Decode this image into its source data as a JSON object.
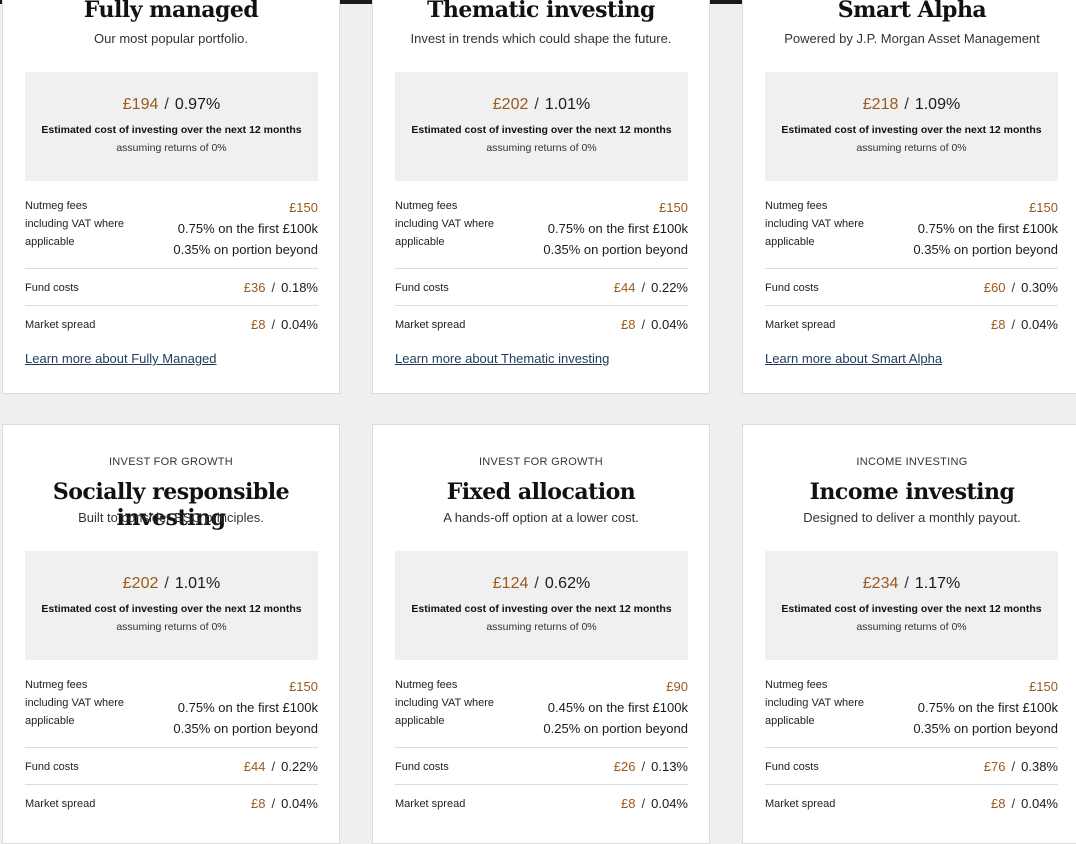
{
  "colors": {
    "accent": "#9a5a1e",
    "link": "#1f3a5a",
    "panel": "#f0f0f0"
  },
  "cards": [
    {
      "eyebrow": "",
      "title": "Fully managed",
      "subtitle": "Our most popular portfolio.",
      "cost_amount": "£194",
      "cost_percent": "0.97%",
      "cost_label": "Estimated cost of investing over the next 12 months",
      "cost_sub": "assuming returns of 0%",
      "fees_label_1": "Nutmeg fees",
      "fees_label_2": "including VAT where",
      "fees_label_3": "applicable",
      "fees_amount": "£150",
      "fees_tier1_rate": "0.75%",
      "fees_tier1_text": "on the first £100k",
      "fees_tier2_rate": "0.35%",
      "fees_tier2_text": "on portion beyond",
      "fund_label": "Fund costs",
      "fund_amount": "£36",
      "fund_percent": "0.18%",
      "spread_label": "Market spread",
      "spread_amount": "£8",
      "spread_percent": "0.04%",
      "learn_more": "Learn more about Fully Managed"
    },
    {
      "eyebrow": "",
      "title": "Thematic investing",
      "subtitle": "Invest in trends which could shape the future.",
      "cost_amount": "£202",
      "cost_percent": "1.01%",
      "cost_label": "Estimated cost of investing over the next 12 months",
      "cost_sub": "assuming returns of 0%",
      "fees_label_1": "Nutmeg fees",
      "fees_label_2": "including VAT where",
      "fees_label_3": "applicable",
      "fees_amount": "£150",
      "fees_tier1_rate": "0.75%",
      "fees_tier1_text": "on the first £100k",
      "fees_tier2_rate": "0.35%",
      "fees_tier2_text": "on portion beyond",
      "fund_label": "Fund costs",
      "fund_amount": "£44",
      "fund_percent": "0.22%",
      "spread_label": "Market spread",
      "spread_amount": "£8",
      "spread_percent": "0.04%",
      "learn_more": "Learn more about Thematic investing"
    },
    {
      "eyebrow": "",
      "title": "Smart Alpha",
      "subtitle": "Powered by J.P. Morgan Asset Management",
      "cost_amount": "£218",
      "cost_percent": "1.09%",
      "cost_label": "Estimated cost of investing over the next 12 months",
      "cost_sub": "assuming returns of 0%",
      "fees_label_1": "Nutmeg fees",
      "fees_label_2": "including VAT where",
      "fees_label_3": "applicable",
      "fees_amount": "£150",
      "fees_tier1_rate": "0.75%",
      "fees_tier1_text": "on the first £100k",
      "fees_tier2_rate": "0.35%",
      "fees_tier2_text": "on portion beyond",
      "fund_label": "Fund costs",
      "fund_amount": "£60",
      "fund_percent": "0.30%",
      "spread_label": "Market spread",
      "spread_amount": "£8",
      "spread_percent": "0.04%",
      "learn_more": "Learn more about Smart Alpha"
    },
    {
      "eyebrow": "INVEST FOR GROWTH",
      "title": "Socially responsible investing",
      "subtitle": "Built to consider ESG principles.",
      "cost_amount": "£202",
      "cost_percent": "1.01%",
      "cost_label": "Estimated cost of investing over the next 12 months",
      "cost_sub": "assuming returns of 0%",
      "fees_label_1": "Nutmeg fees",
      "fees_label_2": "including VAT where",
      "fees_label_3": "applicable",
      "fees_amount": "£150",
      "fees_tier1_rate": "0.75%",
      "fees_tier1_text": "on the first £100k",
      "fees_tier2_rate": "0.35%",
      "fees_tier2_text": "on portion beyond",
      "fund_label": "Fund costs",
      "fund_amount": "£44",
      "fund_percent": "0.22%",
      "spread_label": "Market spread",
      "spread_amount": "£8",
      "spread_percent": "0.04%",
      "learn_more": ""
    },
    {
      "eyebrow": "INVEST FOR GROWTH",
      "title": "Fixed allocation",
      "subtitle": "A hands-off option at a lower cost.",
      "cost_amount": "£124",
      "cost_percent": "0.62%",
      "cost_label": "Estimated cost of investing over the next 12 months",
      "cost_sub": "assuming returns of 0%",
      "fees_label_1": "Nutmeg fees",
      "fees_label_2": "including VAT where",
      "fees_label_3": "applicable",
      "fees_amount": "£90",
      "fees_tier1_rate": "0.45%",
      "fees_tier1_text": "on the first £100k",
      "fees_tier2_rate": "0.25%",
      "fees_tier2_text": "on portion beyond",
      "fund_label": "Fund costs",
      "fund_amount": "£26",
      "fund_percent": "0.13%",
      "spread_label": "Market spread",
      "spread_amount": "£8",
      "spread_percent": "0.04%",
      "learn_more": ""
    },
    {
      "eyebrow": "INCOME INVESTING",
      "title": "Income investing",
      "subtitle": "Designed to deliver a monthly payout.",
      "cost_amount": "£234",
      "cost_percent": "1.17%",
      "cost_label": "Estimated cost of investing over the next 12 months",
      "cost_sub": "assuming returns of 0%",
      "fees_label_1": "Nutmeg fees",
      "fees_label_2": "including VAT where",
      "fees_label_3": "applicable",
      "fees_amount": "£150",
      "fees_tier1_rate": "0.75%",
      "fees_tier1_text": "on the first £100k",
      "fees_tier2_rate": "0.35%",
      "fees_tier2_text": "on portion beyond",
      "fund_label": "Fund costs",
      "fund_amount": "£76",
      "fund_percent": "0.38%",
      "spread_label": "Market spread",
      "spread_amount": "£8",
      "spread_percent": "0.04%",
      "learn_more": ""
    }
  ]
}
